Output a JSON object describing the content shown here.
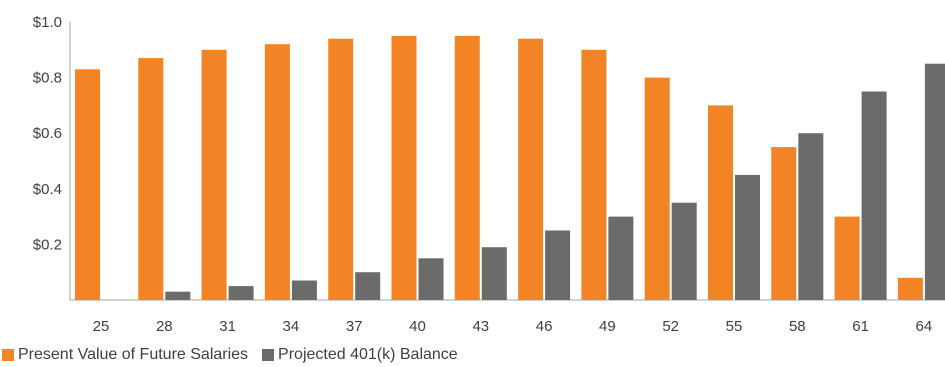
{
  "chart_data": {
    "type": "bar",
    "categories": [
      "25",
      "28",
      "31",
      "34",
      "37",
      "40",
      "43",
      "46",
      "49",
      "52",
      "55",
      "58",
      "61",
      "64"
    ],
    "series": [
      {
        "name": "Present Value of Future Salaries",
        "color": "#f28426",
        "values": [
          0.83,
          0.87,
          0.9,
          0.92,
          0.94,
          0.95,
          0.95,
          0.94,
          0.9,
          0.8,
          0.7,
          0.55,
          0.3,
          0.08
        ]
      },
      {
        "name": "Projected 401(k) Balance",
        "color": "#6b6b6b",
        "values": [
          0,
          0.03,
          0.05,
          0.07,
          0.1,
          0.15,
          0.19,
          0.25,
          0.3,
          0.35,
          0.45,
          0.6,
          0.75,
          0.85
        ]
      }
    ],
    "yticks": [
      {
        "value": 0.2,
        "label": "$0.2"
      },
      {
        "value": 0.4,
        "label": "$0.4"
      },
      {
        "value": 0.6,
        "label": "$0.6"
      },
      {
        "value": 0.8,
        "label": "$0.8"
      },
      {
        "value": 1.0,
        "label": "$1.0"
      }
    ],
    "ylim": [
      0,
      1.0
    ],
    "grid": false,
    "legend_position": "bottom-left"
  }
}
